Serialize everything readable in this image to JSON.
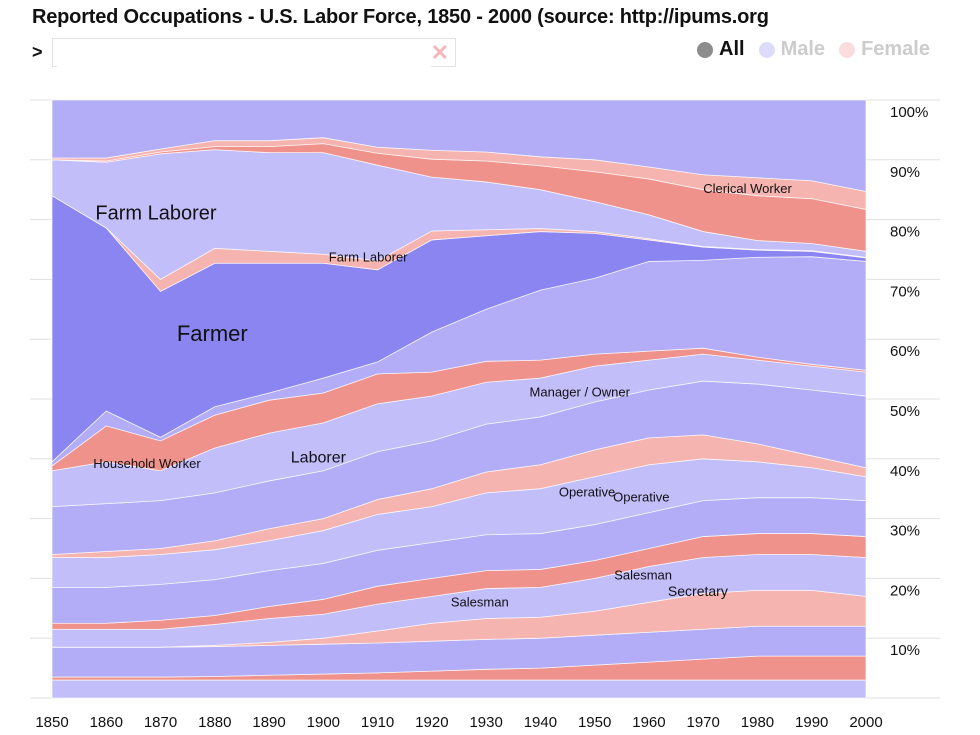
{
  "header": {
    "title": "Reported Occupations - U.S. Labor Force, 1850 - 2000 (source: http://ipums.org",
    "prompt": ">",
    "search_value": "",
    "clear_icon": "close-icon"
  },
  "legend": [
    {
      "label": "All",
      "color": "#8c8c8c",
      "text_color": "#111111",
      "selected": true
    },
    {
      "label": "Male",
      "color": "#dcdcfa",
      "text_color": "#cccccc",
      "selected": false
    },
    {
      "label": "Female",
      "color": "#fadcdc",
      "text_color": "#cccccc",
      "selected": false
    }
  ],
  "colors": {
    "male": "#c2befa",
    "male_alt": "#b2adf6",
    "farmer": "#8b85f1",
    "female": "#f0928c",
    "female_alt": "#f6b4b0",
    "grid": "#e0e0e0"
  },
  "chart_data": {
    "type": "area",
    "stacked": true,
    "normalized": true,
    "x": [
      1850,
      1860,
      1870,
      1880,
      1890,
      1900,
      1910,
      1920,
      1930,
      1940,
      1950,
      1960,
      1970,
      1980,
      1990,
      2000
    ],
    "x_tick_labels": [
      "1850",
      "1860",
      "1870",
      "1880",
      "1890",
      "1900",
      "1910",
      "1920",
      "1930",
      "1940",
      "1950",
      "1960",
      "1970",
      "1980",
      "1990",
      "2000"
    ],
    "y_tick_labels": [
      "10%",
      "20%",
      "30%",
      "40%",
      "50%",
      "60%",
      "70%",
      "80%",
      "90%",
      "100%"
    ],
    "ylim": [
      0,
      100
    ],
    "grid": true,
    "series": [
      {
        "gender": "male",
        "values": [
          3,
          3,
          3,
          3,
          3,
          3,
          3,
          3,
          3,
          3,
          3,
          3,
          3,
          3,
          3,
          3
        ]
      },
      {
        "gender": "female",
        "values": [
          0.5,
          0.5,
          0.5,
          0.6,
          0.8,
          1,
          1.2,
          1.5,
          1.8,
          2,
          2.5,
          3,
          3.5,
          4,
          4,
          4
        ]
      },
      {
        "gender": "male",
        "values": [
          5,
          5,
          5,
          5,
          5,
          5,
          5,
          5,
          5,
          5,
          5,
          5,
          5,
          5,
          5,
          5
        ]
      },
      {
        "gender": "female",
        "name": "Secretary",
        "values": [
          0,
          0,
          0,
          0.2,
          0.5,
          1,
          2,
          3,
          3.5,
          3.5,
          4,
          5,
          6,
          6,
          6,
          5
        ]
      },
      {
        "gender": "male",
        "name": "Salesman",
        "values": [
          3,
          3,
          3,
          3.5,
          4,
          4,
          4.5,
          4.5,
          5,
          5,
          5.5,
          6,
          6,
          6,
          6,
          6.5
        ]
      },
      {
        "gender": "female",
        "values": [
          1,
          1,
          1.5,
          1.5,
          2,
          2.5,
          3,
          3,
          3,
          3,
          3,
          3,
          3.5,
          3.5,
          3.5,
          3.5
        ]
      },
      {
        "gender": "male",
        "values": [
          6,
          6,
          6,
          6,
          6,
          6,
          6,
          6,
          6,
          6,
          6,
          6,
          6,
          6,
          6,
          6
        ]
      },
      {
        "gender": "male",
        "name": "Operative",
        "values": [
          5,
          5,
          5,
          5,
          5,
          5.5,
          6,
          6,
          7,
          7.5,
          8,
          8,
          7,
          6,
          5,
          4
        ]
      },
      {
        "gender": "female",
        "name": "Operative",
        "values": [
          0.5,
          1,
          1,
          1.5,
          2,
          2,
          2.5,
          3,
          3.5,
          4,
          4.5,
          4.5,
          4,
          3,
          2,
          1.5
        ]
      },
      {
        "gender": "male",
        "values": [
          8,
          8,
          8,
          8,
          8,
          8,
          8,
          8,
          8,
          8,
          8,
          8,
          9,
          10,
          11,
          12
        ]
      },
      {
        "gender": "male",
        "name": "Laborer",
        "values": [
          6,
          7,
          5,
          7.5,
          8,
          8,
          8,
          7.5,
          7,
          6.5,
          6,
          5,
          4.5,
          4,
          4,
          4
        ]
      },
      {
        "gender": "female",
        "name": "Household Worker",
        "values": [
          0.8,
          6,
          5,
          5.5,
          5.5,
          5,
          5,
          4,
          3.5,
          3,
          2,
          1.5,
          1,
          0.5,
          0.3,
          0.3
        ]
      },
      {
        "gender": "male",
        "name": "Manager / Owner",
        "values": [
          0.7,
          2.5,
          0.6,
          1.4,
          1.2,
          2.5,
          2,
          6.7,
          8.7,
          11.7,
          12.7,
          15,
          14.7,
          16.7,
          18,
          18.2
        ]
      },
      {
        "gender": "male",
        "name": "Farmer",
        "values": [
          44.5,
          30.6,
          24.4,
          24,
          21.7,
          19.2,
          15.4,
          15.4,
          12.3,
          9.8,
          7.5,
          3.6,
          2.2,
          1.2,
          0.9,
          0.6
        ]
      },
      {
        "gender": "female",
        "name": "Farm Laborer",
        "values": [
          0,
          0,
          2,
          2.5,
          2,
          1.5,
          1.5,
          1.5,
          1,
          0.5,
          0.3,
          0.2,
          0.1,
          0.1,
          0.1,
          0.1
        ]
      },
      {
        "gender": "male",
        "name": "Farm Laborer",
        "values": [
          6,
          11,
          21,
          16.5,
          16.5,
          17,
          16,
          9,
          8,
          6.5,
          5,
          4,
          2.5,
          1.5,
          1.2,
          1
        ]
      },
      {
        "gender": "female",
        "name": "Clerical Worker",
        "values": [
          0,
          0.2,
          0.3,
          0.5,
          1,
          1.5,
          2,
          3,
          3.5,
          4,
          5,
          6,
          7,
          7.5,
          7.5,
          7
        ]
      },
      {
        "gender": "female",
        "values": [
          0.3,
          0.5,
          0.5,
          1,
          1,
          1,
          1,
          1.5,
          1.5,
          1.5,
          2,
          2,
          2.5,
          3,
          3,
          3
        ]
      },
      {
        "gender": "male",
        "values": [
          9.7,
          9.7,
          8.2,
          6.8,
          6.8,
          6.3,
          7.9,
          8.4,
          8.7,
          9.5,
          10,
          11.2,
          12.5,
          13,
          13.5,
          15.3
        ]
      }
    ],
    "annotations": [
      {
        "text": "Farm Laborer",
        "year": 1858,
        "percent": 80.9
      },
      {
        "text": "Farmer",
        "year": 1873,
        "percent": 60.7
      },
      {
        "text": "Farm Laborer",
        "year": 1901,
        "percent": 73.6
      },
      {
        "text": "Clerical Worker",
        "year": 1970,
        "percent": 85
      },
      {
        "text": "Manager / Owner",
        "year": 1938,
        "percent": 51
      },
      {
        "text": "Household Worker",
        "year": 1857.6,
        "percent": 39
      },
      {
        "text": "Laborer",
        "year": 1894,
        "percent": 40.1
      },
      {
        "text": "Operative",
        "year": 1943.4,
        "percent": 34.3
      },
      {
        "text": "Operative",
        "year": 1953.4,
        "percent": 33.4
      },
      {
        "text": "Salesman",
        "year": 1923.5,
        "percent": 15.9
      },
      {
        "text": "Salesman",
        "year": 1953.6,
        "percent": 20.4
      },
      {
        "text": "Secretary",
        "year": 1963.5,
        "percent": 17.7
      }
    ]
  }
}
